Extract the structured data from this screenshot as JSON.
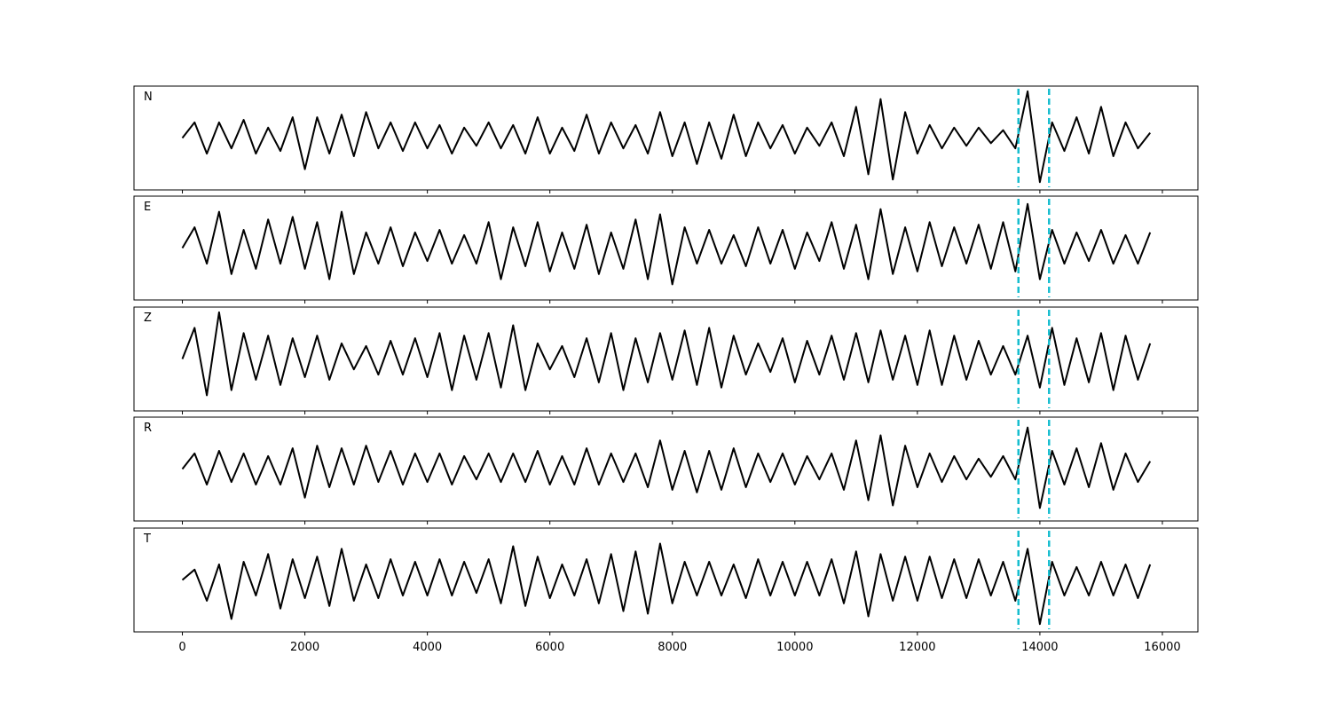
{
  "chart_data": {
    "type": "line",
    "x": [
      0,
      200,
      400,
      600,
      800,
      1000,
      1200,
      1400,
      1600,
      1800,
      2000,
      2200,
      2400,
      2600,
      2800,
      3000,
      3200,
      3400,
      3600,
      3800,
      4000,
      4200,
      4400,
      4600,
      4800,
      5000,
      5200,
      5400,
      5600,
      5800,
      6000,
      6200,
      6400,
      6600,
      6800,
      7000,
      7200,
      7400,
      7600,
      7800,
      8000,
      8200,
      8400,
      8600,
      8800,
      9000,
      9200,
      9400,
      9600,
      9800,
      10000,
      10200,
      10400,
      10600,
      10800,
      11000,
      11200,
      11400,
      11600,
      11800,
      12000,
      12200,
      12400,
      12600,
      12800,
      13000,
      13200,
      13400,
      13600,
      13800,
      14000,
      14200,
      14400,
      14600,
      14800,
      15000,
      15200,
      15400,
      15600,
      15800
    ],
    "series": [
      {
        "name": "N",
        "values": [
          0.0,
          0.3,
          -0.3,
          0.3,
          -0.2,
          0.35,
          -0.3,
          0.2,
          -0.25,
          0.4,
          -0.6,
          0.4,
          -0.3,
          0.45,
          -0.35,
          0.5,
          -0.2,
          0.3,
          -0.25,
          0.3,
          -0.2,
          0.25,
          -0.3,
          0.2,
          -0.15,
          0.3,
          -0.2,
          0.25,
          -0.3,
          0.4,
          -0.3,
          0.2,
          -0.25,
          0.45,
          -0.3,
          0.3,
          -0.2,
          0.25,
          -0.3,
          0.5,
          -0.35,
          0.3,
          -0.5,
          0.3,
          -0.4,
          0.45,
          -0.35,
          0.3,
          -0.2,
          0.25,
          -0.3,
          0.2,
          -0.15,
          0.3,
          -0.35,
          0.6,
          -0.7,
          0.75,
          -0.8,
          0.5,
          -0.3,
          0.25,
          -0.2,
          0.2,
          -0.15,
          0.2,
          -0.1,
          0.15,
          -0.2,
          0.9,
          -0.85,
          0.3,
          -0.25,
          0.4,
          -0.3,
          0.6,
          -0.35,
          0.3,
          -0.2,
          0.1
        ]
      },
      {
        "name": "E",
        "values": [
          0.0,
          0.4,
          -0.3,
          0.7,
          -0.5,
          0.35,
          -0.4,
          0.55,
          -0.3,
          0.6,
          -0.4,
          0.5,
          -0.6,
          0.7,
          -0.5,
          0.3,
          -0.3,
          0.4,
          -0.35,
          0.3,
          -0.25,
          0.35,
          -0.3,
          0.25,
          -0.3,
          0.5,
          -0.6,
          0.4,
          -0.35,
          0.5,
          -0.45,
          0.3,
          -0.4,
          0.45,
          -0.5,
          0.3,
          -0.4,
          0.55,
          -0.6,
          0.65,
          -0.7,
          0.4,
          -0.3,
          0.35,
          -0.3,
          0.25,
          -0.35,
          0.4,
          -0.3,
          0.35,
          -0.4,
          0.3,
          -0.25,
          0.5,
          -0.4,
          0.45,
          -0.6,
          0.75,
          -0.5,
          0.4,
          -0.45,
          0.5,
          -0.35,
          0.4,
          -0.3,
          0.45,
          -0.4,
          0.5,
          -0.45,
          0.85,
          -0.6,
          0.35,
          -0.3,
          0.3,
          -0.25,
          0.35,
          -0.3,
          0.25,
          -0.3,
          0.3
        ]
      },
      {
        "name": "Z",
        "values": [
          0.0,
          0.6,
          -0.7,
          0.9,
          -0.6,
          0.5,
          -0.4,
          0.45,
          -0.5,
          0.4,
          -0.35,
          0.45,
          -0.4,
          0.3,
          -0.2,
          0.25,
          -0.3,
          0.35,
          -0.3,
          0.4,
          -0.35,
          0.5,
          -0.6,
          0.45,
          -0.4,
          0.5,
          -0.55,
          0.65,
          -0.6,
          0.3,
          -0.2,
          0.25,
          -0.35,
          0.4,
          -0.45,
          0.5,
          -0.6,
          0.4,
          -0.45,
          0.5,
          -0.4,
          0.55,
          -0.5,
          0.6,
          -0.55,
          0.45,
          -0.3,
          0.3,
          -0.25,
          0.4,
          -0.45,
          0.35,
          -0.3,
          0.45,
          -0.4,
          0.5,
          -0.45,
          0.55,
          -0.4,
          0.45,
          -0.5,
          0.55,
          -0.5,
          0.45,
          -0.4,
          0.35,
          -0.3,
          0.25,
          -0.3,
          0.45,
          -0.55,
          0.6,
          -0.5,
          0.4,
          -0.45,
          0.5,
          -0.6,
          0.45,
          -0.4,
          0.3
        ]
      },
      {
        "name": "R",
        "values": [
          0.0,
          0.3,
          -0.3,
          0.35,
          -0.25,
          0.3,
          -0.3,
          0.25,
          -0.3,
          0.4,
          -0.55,
          0.45,
          -0.35,
          0.4,
          -0.3,
          0.45,
          -0.25,
          0.35,
          -0.3,
          0.3,
          -0.25,
          0.3,
          -0.3,
          0.25,
          -0.2,
          0.3,
          -0.25,
          0.3,
          -0.25,
          0.35,
          -0.3,
          0.25,
          -0.3,
          0.4,
          -0.3,
          0.3,
          -0.25,
          0.3,
          -0.35,
          0.55,
          -0.4,
          0.35,
          -0.45,
          0.35,
          -0.4,
          0.4,
          -0.35,
          0.3,
          -0.25,
          0.3,
          -0.3,
          0.25,
          -0.2,
          0.3,
          -0.4,
          0.55,
          -0.6,
          0.65,
          -0.7,
          0.45,
          -0.35,
          0.3,
          -0.25,
          0.25,
          -0.2,
          0.2,
          -0.15,
          0.25,
          -0.2,
          0.8,
          -0.75,
          0.35,
          -0.3,
          0.4,
          -0.35,
          0.5,
          -0.4,
          0.3,
          -0.25,
          0.15
        ]
      },
      {
        "name": "T",
        "values": [
          0.0,
          0.2,
          -0.4,
          0.3,
          -0.75,
          0.35,
          -0.3,
          0.5,
          -0.55,
          0.4,
          -0.35,
          0.45,
          -0.5,
          0.6,
          -0.4,
          0.3,
          -0.35,
          0.4,
          -0.3,
          0.35,
          -0.3,
          0.4,
          -0.3,
          0.35,
          -0.25,
          0.4,
          -0.45,
          0.65,
          -0.5,
          0.45,
          -0.35,
          0.3,
          -0.3,
          0.4,
          -0.45,
          0.5,
          -0.6,
          0.55,
          -0.65,
          0.7,
          -0.45,
          0.35,
          -0.3,
          0.35,
          -0.3,
          0.3,
          -0.35,
          0.4,
          -0.3,
          0.35,
          -0.3,
          0.35,
          -0.3,
          0.4,
          -0.45,
          0.55,
          -0.7,
          0.5,
          -0.4,
          0.45,
          -0.4,
          0.45,
          -0.35,
          0.4,
          -0.35,
          0.4,
          -0.3,
          0.35,
          -0.4,
          0.6,
          -0.85,
          0.35,
          -0.3,
          0.25,
          -0.3,
          0.35,
          -0.3,
          0.3,
          -0.35,
          0.3
        ]
      }
    ],
    "color": "#000000",
    "xlim": [
      -790,
      16580
    ],
    "xticks": [
      0,
      2000,
      4000,
      6000,
      8000,
      10000,
      12000,
      14000,
      16000
    ],
    "ylim": [
      -1,
      1
    ],
    "vlines": [
      13650,
      14150
    ],
    "vline_color": "#17becf"
  }
}
